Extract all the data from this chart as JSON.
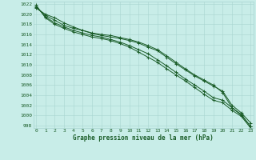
{
  "title": "Graphe pression niveau de la mer (hPa)",
  "bg_color": "#c8ede8",
  "grid_color": "#a8d4d0",
  "line_color": "#1a5c28",
  "xlim": [
    -0.3,
    23.3
  ],
  "ylim": [
    997.5,
    1022.5
  ],
  "yticks": [
    998,
    1000,
    1002,
    1004,
    1006,
    1008,
    1010,
    1012,
    1014,
    1016,
    1018,
    1020,
    1022
  ],
  "xticks": [
    0,
    1,
    2,
    3,
    4,
    5,
    6,
    7,
    8,
    9,
    10,
    11,
    12,
    13,
    14,
    15,
    16,
    17,
    18,
    19,
    20,
    21,
    22,
    23
  ],
  "series": [
    [
      1021.2,
      1020.0,
      1019.3,
      1018.3,
      1017.5,
      1016.8,
      1016.2,
      1015.8,
      1015.5,
      1015.2,
      1014.8,
      1014.3,
      1013.5,
      1012.8,
      1011.5,
      1010.2,
      1009.0,
      1007.8,
      1006.8,
      1005.8,
      1004.8,
      1002.0,
      1000.5,
      998.5
    ],
    [
      1021.4,
      1019.8,
      1018.8,
      1017.8,
      1017.2,
      1016.8,
      1016.3,
      1016.0,
      1015.8,
      1015.4,
      1015.0,
      1014.5,
      1013.8,
      1013.0,
      1011.8,
      1010.5,
      1009.2,
      1008.0,
      1007.0,
      1006.0,
      1004.5,
      1001.5,
      1000.0,
      997.8
    ],
    [
      1021.6,
      1019.5,
      1018.3,
      1017.5,
      1016.8,
      1016.3,
      1015.8,
      1015.5,
      1015.0,
      1014.5,
      1013.8,
      1013.0,
      1012.2,
      1011.0,
      1009.8,
      1008.5,
      1007.2,
      1006.0,
      1004.8,
      1003.5,
      1003.0,
      1001.5,
      1000.2,
      997.8
    ],
    [
      1021.8,
      1019.3,
      1018.0,
      1017.2,
      1016.5,
      1016.0,
      1015.5,
      1015.2,
      1014.8,
      1014.2,
      1013.5,
      1012.5,
      1011.5,
      1010.5,
      1009.2,
      1008.0,
      1006.8,
      1005.5,
      1004.2,
      1003.0,
      1002.5,
      1001.0,
      999.8,
      997.5
    ]
  ]
}
